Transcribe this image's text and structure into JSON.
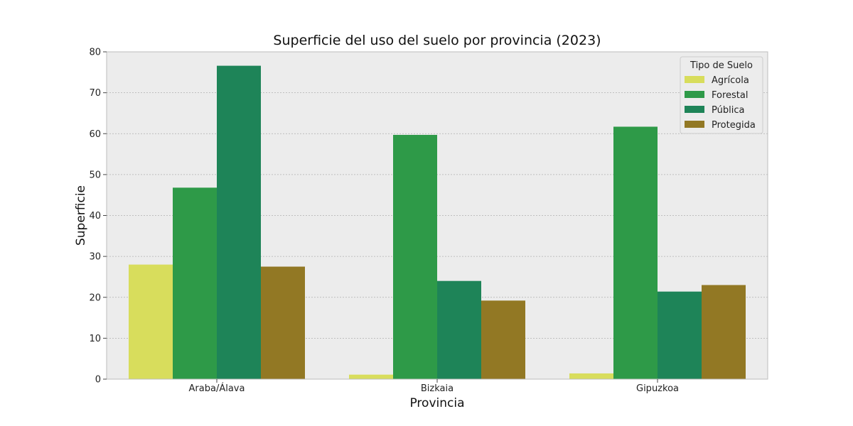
{
  "chart_data": {
    "type": "bar",
    "title": "Superficie del uso del suelo por provincia (2023)",
    "xlabel": "Provincia",
    "ylabel": "Superficie",
    "categories": [
      "Araba/Álava",
      "Bizkaia",
      "Gipuzkoa"
    ],
    "series": [
      {
        "name": "Agrícola",
        "color": "#d8dd5c",
        "values": [
          28.0,
          1.1,
          1.4
        ]
      },
      {
        "name": "Forestal",
        "color": "#2e9a48",
        "values": [
          46.8,
          59.7,
          61.7
        ]
      },
      {
        "name": "Pública",
        "color": "#1e8458",
        "values": [
          76.6,
          24.0,
          21.4
        ]
      },
      {
        "name": "Protegida",
        "color": "#927824",
        "values": [
          27.5,
          19.2,
          23.0
        ]
      }
    ],
    "ylim": [
      0,
      80
    ],
    "yticks": [
      0,
      10,
      20,
      30,
      40,
      50,
      60,
      70,
      80
    ],
    "grid": true,
    "legend": {
      "title": "Tipo de Suelo",
      "placement": "top-right"
    },
    "background_color": "#ececec"
  }
}
